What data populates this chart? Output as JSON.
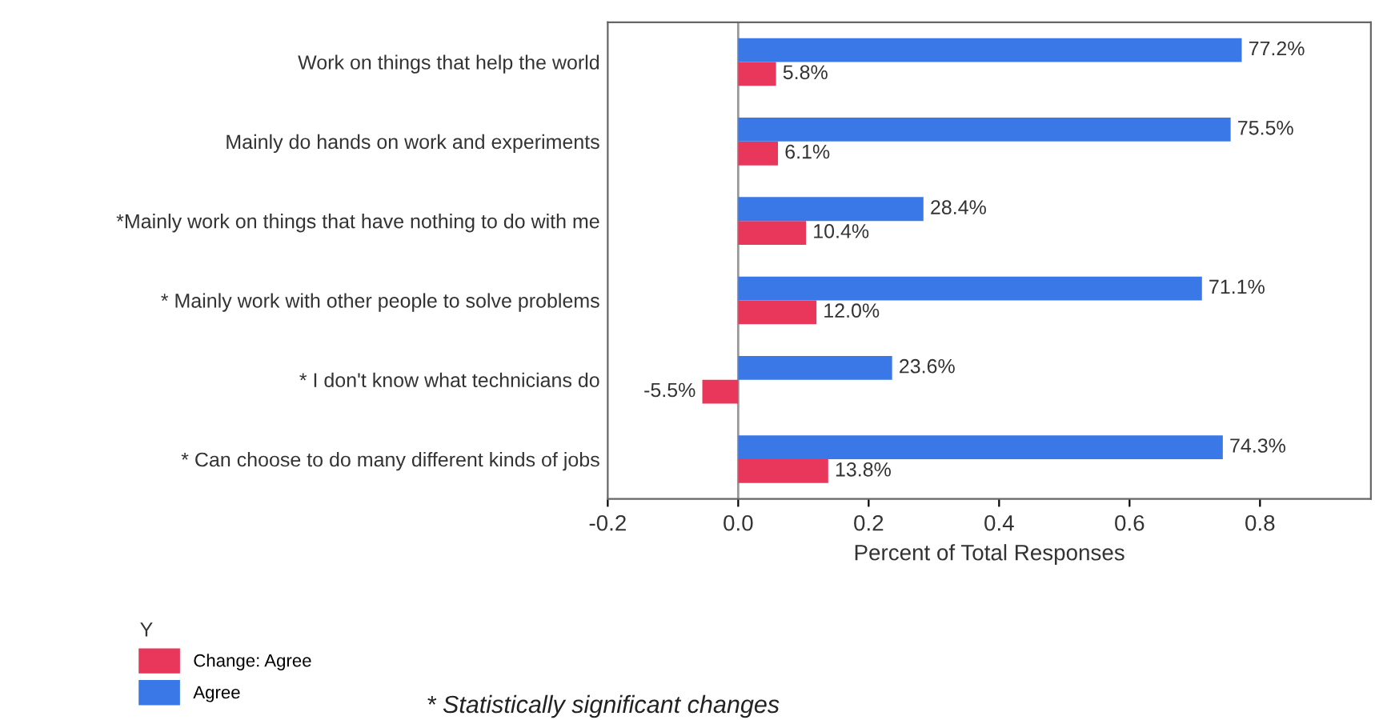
{
  "chart_data": {
    "type": "bar",
    "orientation": "horizontal",
    "xlabel": "Percent of Total Responses",
    "legend_title": "Y",
    "legend": "bottom left",
    "categories": [
      "Work on things that help the world",
      "Mainly do hands on work and experiments",
      "*Mainly work on things that have nothing to do with me",
      "* Mainly work with other people to solve problems",
      "* I don't know what technicians do",
      "* Can choose to do many different kinds of jobs"
    ],
    "series": [
      {
        "name": "Change: Agree",
        "color": "#e8375a",
        "values": [
          0.058,
          0.061,
          0.104,
          0.12,
          -0.055,
          0.138
        ],
        "value_labels": [
          "5.8%",
          "6.1%",
          "10.4%",
          "12.0%",
          "-5.5%",
          "13.8%"
        ]
      },
      {
        "name": "Agree",
        "color": "#3b78e7",
        "values": [
          0.772,
          0.755,
          0.284,
          0.711,
          0.236,
          0.743
        ],
        "value_labels": [
          "77.2%",
          "75.5%",
          "28.4%",
          "71.1%",
          "23.6%",
          "74.3%"
        ]
      }
    ],
    "xlim": [
      -0.2,
      0.97
    ],
    "xticks": [
      {
        "value": -0.2,
        "label": "-0.2"
      },
      {
        "value": 0,
        "label": "0.0"
      },
      0.2,
      0.4,
      0.6,
      0.8
    ],
    "ref_lines": [
      {
        "axis": "x",
        "value": 0,
        "color": "#999999"
      }
    ],
    "annotations": [
      "* Statistically significant changes"
    ]
  }
}
